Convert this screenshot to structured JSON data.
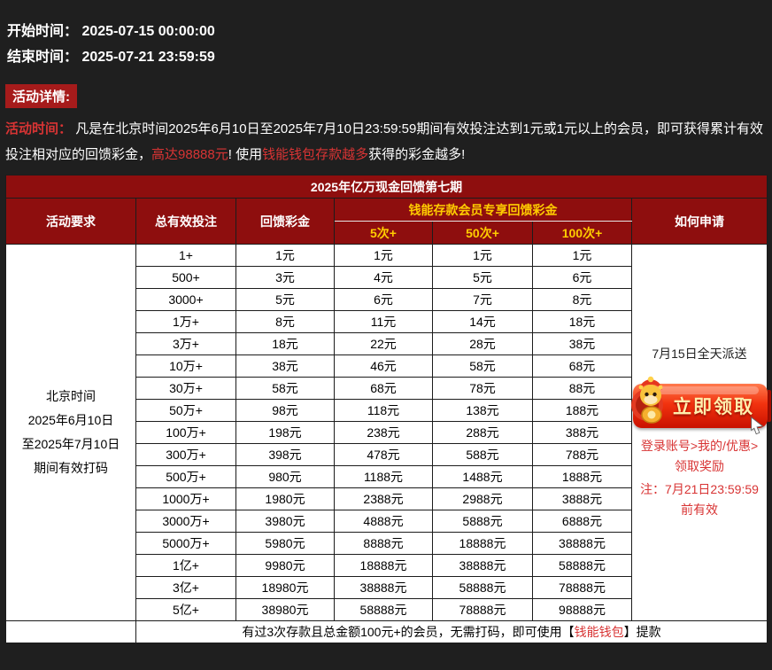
{
  "schedule": {
    "start_label": "开始时间：",
    "start_value": "2025-07-15 00:00:00",
    "end_label": "结束时间：",
    "end_value": "2025-07-21 23:59:59"
  },
  "details": {
    "badge_label": "活动详情:",
    "time_label": "活动时间：",
    "body_1": "凡是在北京时间2025年6月10日至2025年7月10日23:59:59期间有效投注达到1元或1元以上的会员，即可获得累计有效投注相对应的回馈彩金，",
    "highlight_max": "高达98888元",
    "body_2": "! 使用",
    "highlight_wallet": "钱能钱包存款越多",
    "body_3": "获得的彩金越多!"
  },
  "table": {
    "title": "2025年亿万现金回馈第七期",
    "col_requirement": "活动要求",
    "col_total_bets": "总有效投注",
    "col_rebate": "回馈彩金",
    "col_vip_group": "钱能存款会员专享回馈彩金",
    "col_tiers": [
      "5次+",
      "50次+",
      "100次+"
    ],
    "col_apply": "如何申请",
    "requirement": [
      "北京时间",
      "2025年6月10日",
      "至2025年7月10日",
      "期间有效打码"
    ],
    "rows": [
      {
        "cells": [
          "1+",
          "1元",
          "1元",
          "1元",
          "1元"
        ]
      },
      {
        "cells": [
          "500+",
          "3元",
          "4元",
          "5元",
          "6元"
        ]
      },
      {
        "cells": [
          "3000+",
          "5元",
          "6元",
          "7元",
          "8元"
        ]
      },
      {
        "cells": [
          "1万+",
          "8元",
          "11元",
          "14元",
          "18元"
        ]
      },
      {
        "cells": [
          "3万+",
          "18元",
          "22元",
          "28元",
          "38元"
        ]
      },
      {
        "cells": [
          "10万+",
          "38元",
          "46元",
          "58元",
          "68元"
        ]
      },
      {
        "cells": [
          "30万+",
          "58元",
          "68元",
          "78元",
          "88元"
        ]
      },
      {
        "cells": [
          "50万+",
          "98元",
          "118元",
          "138元",
          "188元"
        ]
      },
      {
        "cells": [
          "100万+",
          "198元",
          "238元",
          "288元",
          "388元"
        ]
      },
      {
        "cells": [
          "300万+",
          "398元",
          "478元",
          "588元",
          "788元"
        ]
      },
      {
        "cells": [
          "500万+",
          "980元",
          "1188元",
          "1488元",
          "1888元"
        ]
      },
      {
        "cells": [
          "1000万+",
          "1980元",
          "2388元",
          "2988元",
          "3888元"
        ]
      },
      {
        "cells": [
          "3000万+",
          "3980元",
          "4888元",
          "5888元",
          "6888元"
        ]
      },
      {
        "cells": [
          "5000万+",
          "5980元",
          "8888元",
          "18888元",
          "38888元"
        ]
      },
      {
        "cells": [
          "1亿+",
          "9980元",
          "18888元",
          "38888元",
          "58888元"
        ]
      },
      {
        "cells": [
          "3亿+",
          "18980元",
          "38888元",
          "58888元",
          "78888元"
        ]
      },
      {
        "cells": [
          "5亿+",
          "38980元",
          "58888元",
          "78888元",
          "98888元"
        ]
      }
    ],
    "apply": {
      "dispatch": "7月15日全天派送",
      "button_label": "立即领取",
      "login_path": "登录账号>我的/优惠>领取奖励",
      "note": "注：7月21日23:59:59前有效"
    },
    "footer": {
      "text_1": "有过3次存款且总金额100元+的会员，无需打码，即可使用【",
      "highlight": "钱能钱包",
      "text_2": "】提款"
    }
  },
  "colors": {
    "page_bg": "#1f1f1f",
    "dark_red_header": "#8e0e0e",
    "badge_red": "#a61b1b",
    "accent_text_red": "#d83434",
    "gold": "#ffcc00",
    "title_cream": "#fdf3d8",
    "button_red": "#f2330f"
  }
}
